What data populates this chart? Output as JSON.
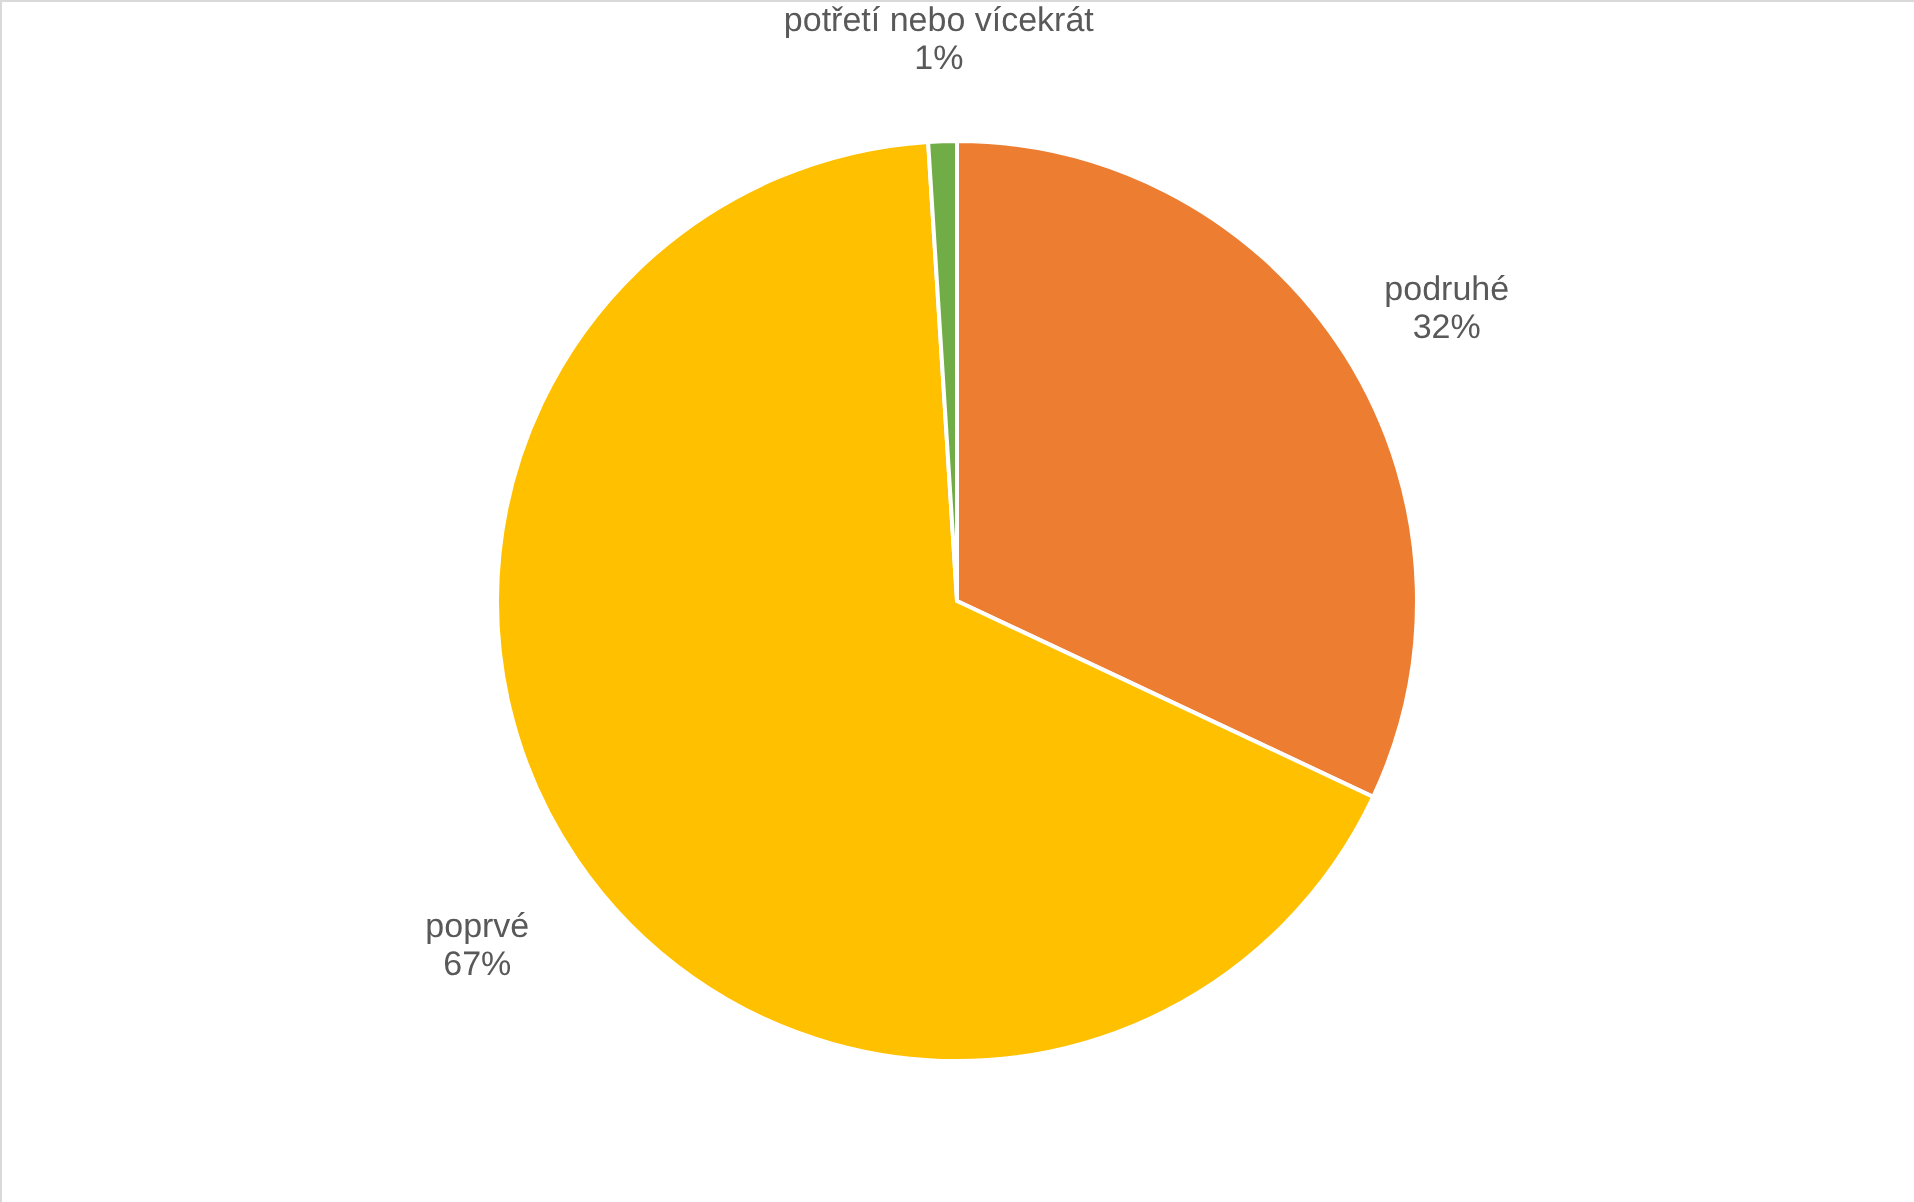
{
  "chart_data": {
    "type": "pie",
    "categories": [
      "podruhé",
      "poprvé",
      "potřetí nebo vícekrát"
    ],
    "values": [
      32,
      67,
      1
    ],
    "colors": [
      "#ed7d31",
      "#ffc000",
      "#70ad47"
    ],
    "value_labels": [
      "32%",
      "67%",
      "1%"
    ]
  }
}
